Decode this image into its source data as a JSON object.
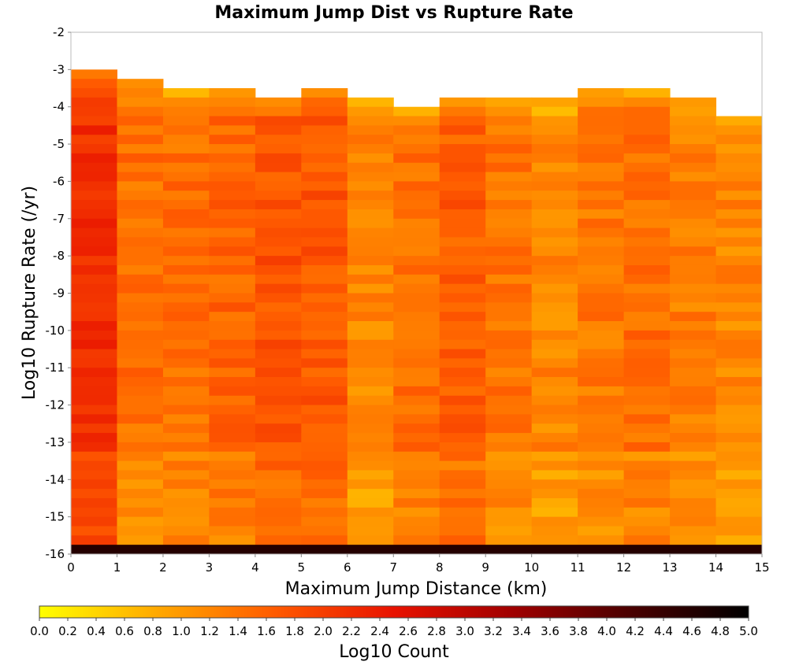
{
  "chart_data": {
    "type": "heatmap",
    "title": "Maximum Jump Dist vs Rupture Rate",
    "xlabel": "Maximum Jump Distance (km)",
    "ylabel": "Log10 Rupture Rate (/yr)",
    "xlim": [
      0,
      15
    ],
    "ylim": [
      -16,
      -2
    ],
    "x_ticks": [
      "0",
      "1",
      "2",
      "3",
      "4",
      "5",
      "6",
      "7",
      "8",
      "9",
      "10",
      "11",
      "12",
      "13",
      "14",
      "15"
    ],
    "y_ticks": [
      "-2",
      "-3",
      "-4",
      "-5",
      "-6",
      "-7",
      "-8",
      "-9",
      "-10",
      "-11",
      "-12",
      "-13",
      "-14",
      "-15",
      "-16"
    ],
    "colorbar": {
      "label": "Log10 Count",
      "range": [
        0.0,
        5.0
      ],
      "ticks": [
        "0.0",
        "0.2",
        "0.4",
        "0.6",
        "0.8",
        "1.0",
        "1.2",
        "1.4",
        "1.6",
        "1.8",
        "2.0",
        "2.2",
        "2.4",
        "2.6",
        "2.8",
        "3.0",
        "3.2",
        "3.4",
        "3.6",
        "3.8",
        "4.0",
        "4.2",
        "4.4",
        "4.6",
        "4.8",
        "5.0"
      ],
      "colors": [
        "#ffff00",
        "#ffa800",
        "#ff5a00",
        "#e81200",
        "#a00000",
        "#4a0000",
        "#000000"
      ]
    },
    "x_bin_width": 1,
    "y_bin_height": 0.25,
    "columns": [
      {
        "x": 0,
        "y_start": -3.0,
        "base": 2.15
      },
      {
        "x": 1,
        "y_start": -3.25,
        "base": 1.45
      },
      {
        "x": 2,
        "y_start": -3.5,
        "base": 1.45
      },
      {
        "x": 3,
        "y_start": -3.5,
        "base": 1.55
      },
      {
        "x": 4,
        "y_start": -3.75,
        "base": 1.75
      },
      {
        "x": 5,
        "y_start": -3.5,
        "base": 1.7
      },
      {
        "x": 6,
        "y_start": -3.75,
        "base": 1.2
      },
      {
        "x": 7,
        "y_start": -4.0,
        "base": 1.45
      },
      {
        "x": 8,
        "y_start": -3.75,
        "base": 1.65
      },
      {
        "x": 9,
        "y_start": -3.75,
        "base": 1.4
      },
      {
        "x": 10,
        "y_start": -3.75,
        "base": 1.2
      },
      {
        "x": 11,
        "y_start": -3.5,
        "base": 1.35
      },
      {
        "x": 12,
        "y_start": -3.5,
        "base": 1.45
      },
      {
        "x": 13,
        "y_start": -3.75,
        "base": 1.3
      },
      {
        "x": 14,
        "y_start": -4.25,
        "base": 1.2
      }
    ],
    "bottom_row": {
      "y": -16,
      "value": 4.6
    }
  }
}
